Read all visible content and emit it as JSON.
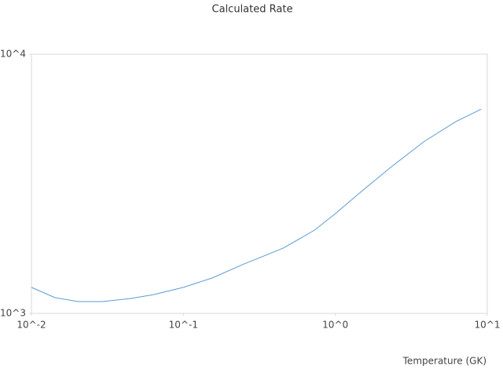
{
  "chart_data": {
    "type": "line",
    "title": "Calculated Rate",
    "x_label": "Temperature (GK)",
    "xscale": "log",
    "yscale": "log",
    "xlim": [
      0.01,
      10
    ],
    "ylim": [
      1000,
      10000
    ],
    "xticks": [
      {
        "value": 0.01,
        "label": "10^-2"
      },
      {
        "value": 0.1,
        "label": "10^-1"
      },
      {
        "value": 1,
        "label": "10^0"
      },
      {
        "value": 10,
        "label": "10^1"
      }
    ],
    "yticks": [
      {
        "value": 1000,
        "label": "10^3"
      },
      {
        "value": 10000,
        "label": "10^4"
      }
    ],
    "grid": false,
    "series": [
      {
        "color": "#5b9bd5",
        "x": [
          0.01,
          0.0143,
          0.0204,
          0.0292,
          0.0443,
          0.0632,
          0.1,
          0.155,
          0.25,
          0.454,
          0.73,
          1,
          1.48,
          2.39,
          3.85,
          6.2,
          9.1
        ],
        "values": [
          1260,
          1150,
          1110,
          1110,
          1140,
          1180,
          1260,
          1370,
          1550,
          1785,
          2095,
          2425,
          2950,
          3715,
          4610,
          5490,
          6135
        ]
      }
    ]
  }
}
